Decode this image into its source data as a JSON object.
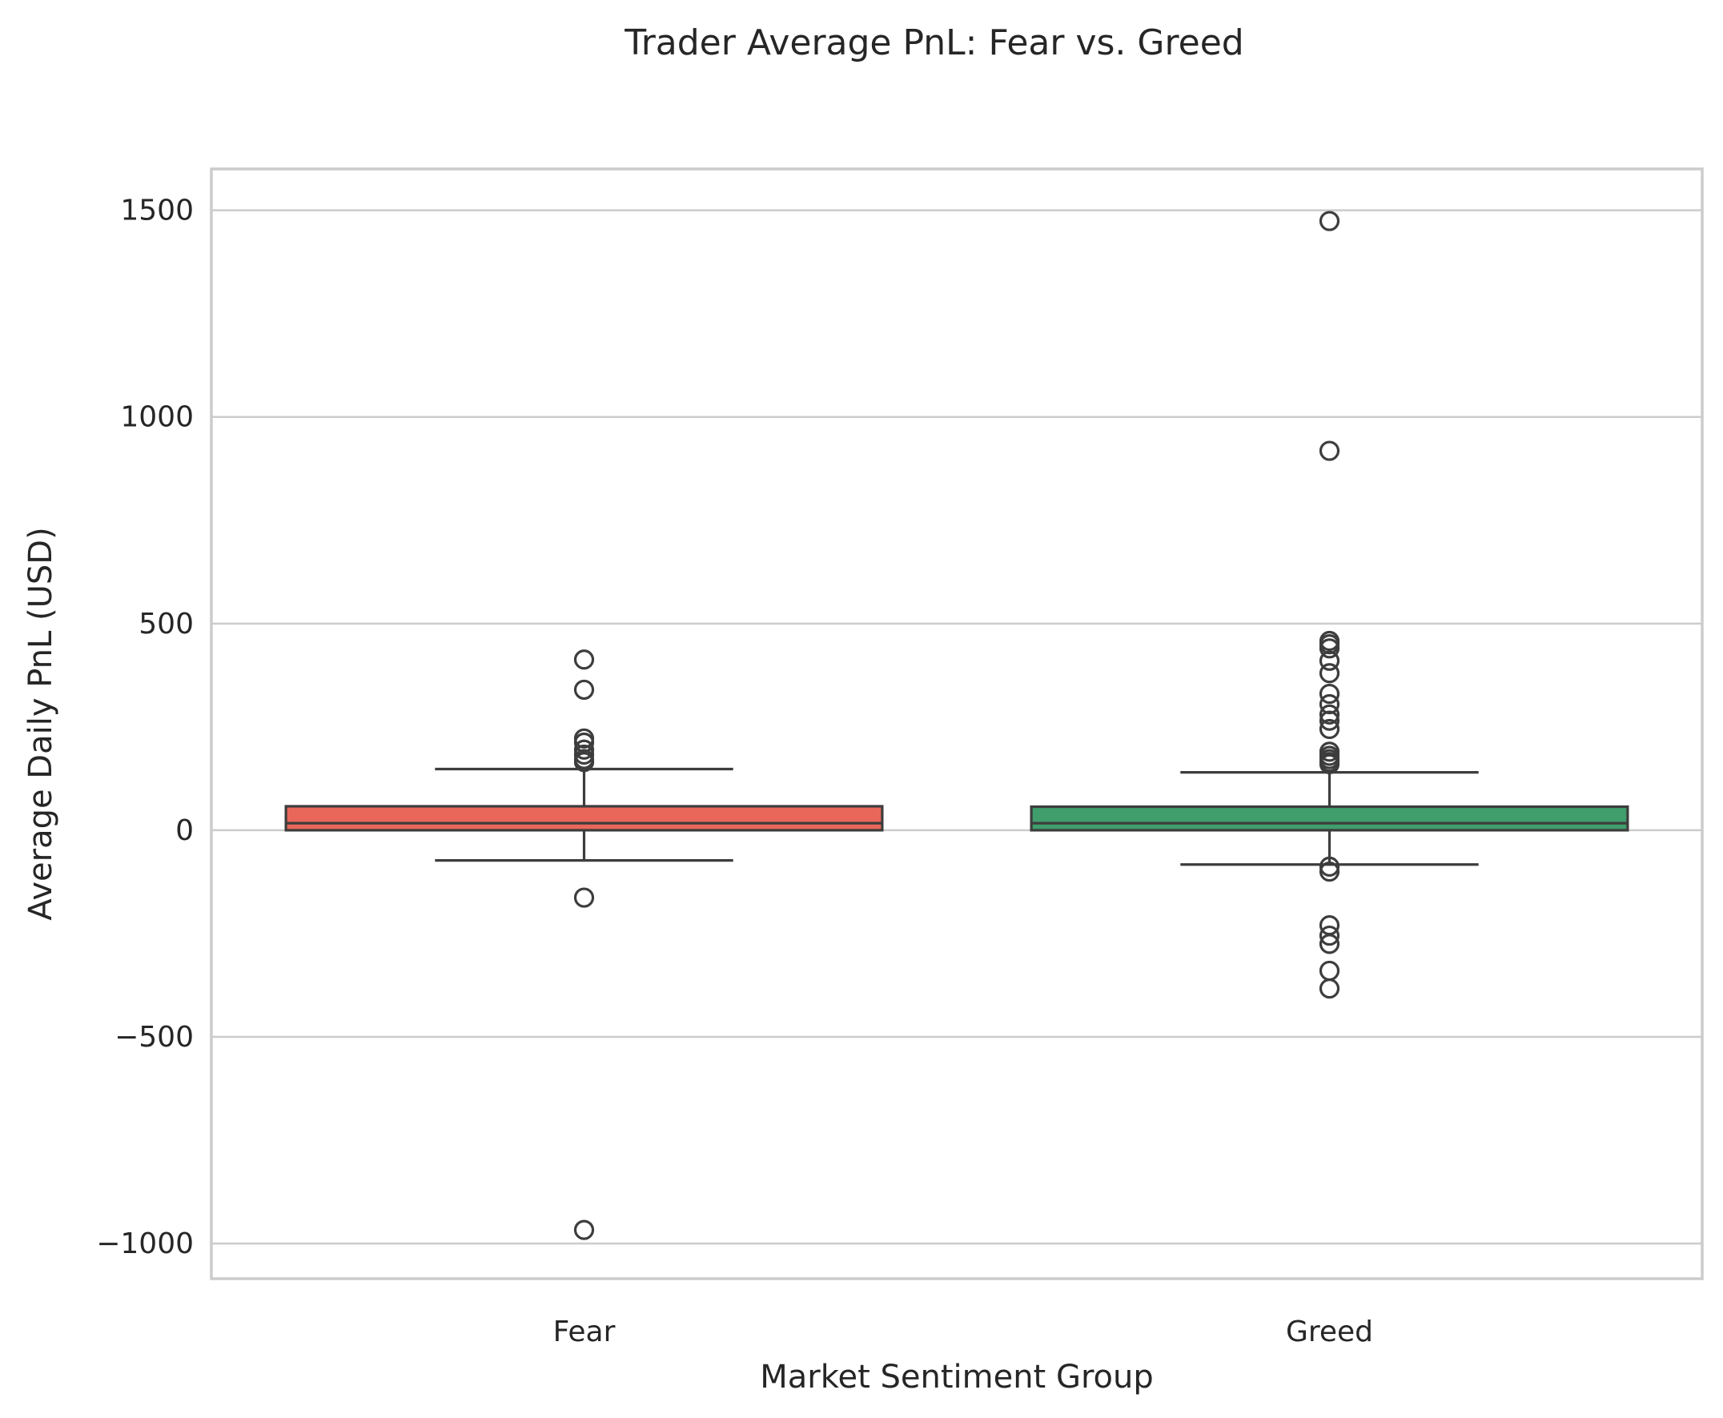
{
  "chart_data": {
    "type": "box",
    "title": "Trader Average PnL: Fear vs. Greed",
    "xlabel": "Market Sentiment Group",
    "ylabel": "Average Daily PnL (USD)",
    "ylim": [
      -1085,
      1600
    ],
    "yticks": [
      -1000,
      -500,
      0,
      500,
      1000,
      1500
    ],
    "grid": true,
    "legend": "none",
    "categories": [
      "Fear",
      "Greed"
    ],
    "series": [
      {
        "category": "Fear",
        "color": "#e8675a",
        "whisker_low": -73,
        "q1": 0,
        "median": 17,
        "q3": 58,
        "whisker_high": 148,
        "outliers": [
          413,
          340,
          222,
          212,
          195,
          183,
          172,
          165,
          -163,
          -967
        ]
      },
      {
        "category": "Greed",
        "color": "#3f9e6c",
        "whisker_low": -83,
        "q1": 0,
        "median": 17,
        "q3": 57,
        "whisker_high": 140,
        "outliers": [
          1474,
          918,
          458,
          450,
          440,
          410,
          380,
          330,
          305,
          280,
          265,
          245,
          190,
          180,
          172,
          165,
          160,
          -88,
          -100,
          -230,
          -255,
          -275,
          -340,
          -383
        ]
      }
    ]
  }
}
